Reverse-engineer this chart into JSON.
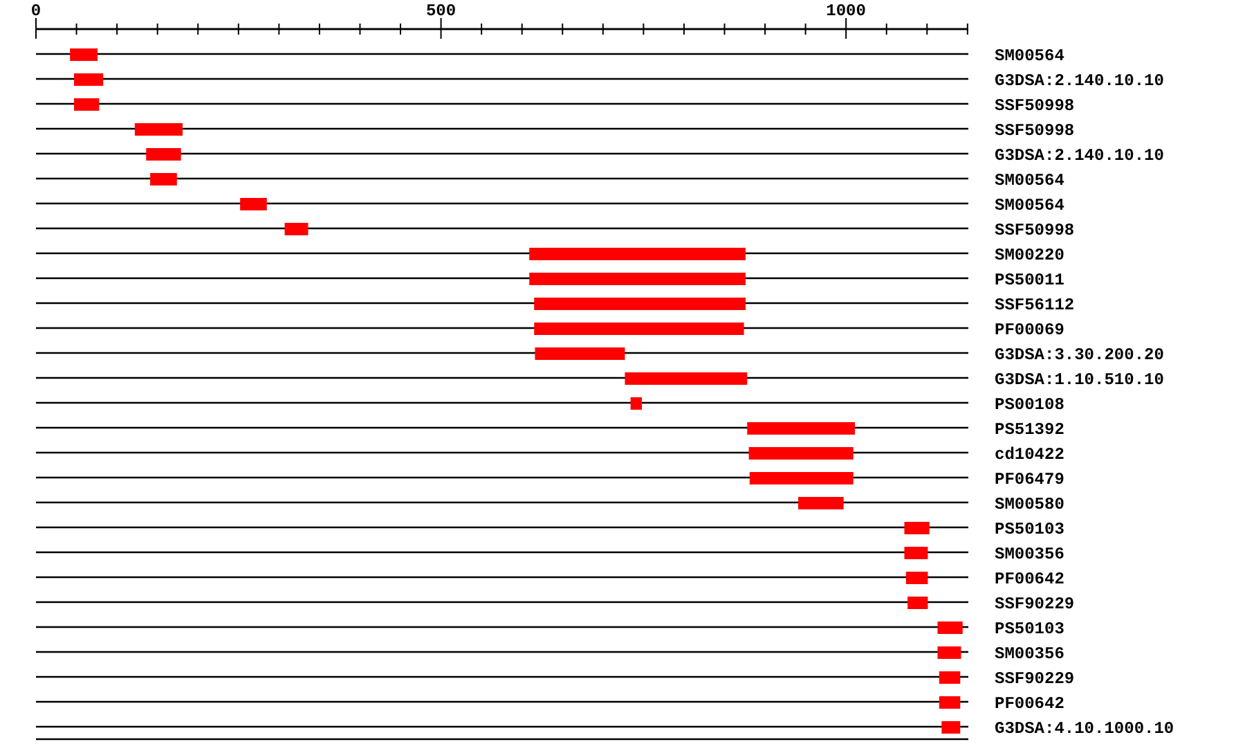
{
  "chart_data": {
    "type": "bar",
    "orientation": "horizontal",
    "categories": [
      "SM00564",
      "G3DSA:2.140.10.10",
      "SSF50998",
      "SSF50998",
      "G3DSA:2.140.10.10",
      "SM00564",
      "SM00564",
      "SSF50998",
      "SM00220",
      "PS50011",
      "SSF56112",
      "PF00069",
      "G3DSA:3.30.200.20",
      "G3DSA:1.10.510.10",
      "PS00108",
      "PS51392",
      "cd10422",
      "PF06479",
      "SM00580",
      "PS50103",
      "SM00356",
      "PF00642",
      "SSF90229",
      "PS50103",
      "SM00356",
      "SSF90229",
      "PF00642",
      "G3DSA:4.10.1000.10"
    ],
    "base": [
      42,
      47,
      47,
      122,
      136,
      141,
      252,
      307,
      609,
      609,
      615,
      615,
      616,
      727,
      734,
      878,
      880,
      881,
      941,
      1072,
      1072,
      1074,
      1076,
      1113,
      1113,
      1115,
      1115,
      1118
    ],
    "values": [
      34,
      36,
      31,
      59,
      43,
      33,
      33,
      29,
      267,
      267,
      261,
      259,
      111,
      151,
      14,
      133,
      129,
      128,
      56,
      31,
      29,
      27,
      25,
      31,
      29,
      26,
      26,
      23
    ],
    "color": "#ff0000",
    "xlim": [
      0,
      1151
    ],
    "xticks": [
      0,
      {
        "value": 50,
        "label": null
      },
      {
        "value": 100,
        "label": null
      },
      {
        "value": 150,
        "label": null
      },
      {
        "value": 200,
        "label": null
      },
      {
        "value": 250,
        "label": null
      },
      {
        "value": 300,
        "label": null
      },
      {
        "value": 350,
        "label": null
      },
      {
        "value": 400,
        "label": null
      },
      {
        "value": 450,
        "label": null
      },
      500,
      {
        "value": 550,
        "label": null
      },
      {
        "value": 600,
        "label": null
      },
      {
        "value": 650,
        "label": null
      },
      {
        "value": 700,
        "label": null
      },
      {
        "value": 750,
        "label": null
      },
      {
        "value": 800,
        "label": null
      },
      {
        "value": 850,
        "label": null
      },
      {
        "value": 900,
        "label": null
      },
      {
        "value": 950,
        "label": null
      },
      1000,
      {
        "value": 1050,
        "label": null
      },
      {
        "value": 1100,
        "label": null
      },
      {
        "value": 1150,
        "label": null
      }
    ],
    "grid": "y",
    "legend": false
  }
}
